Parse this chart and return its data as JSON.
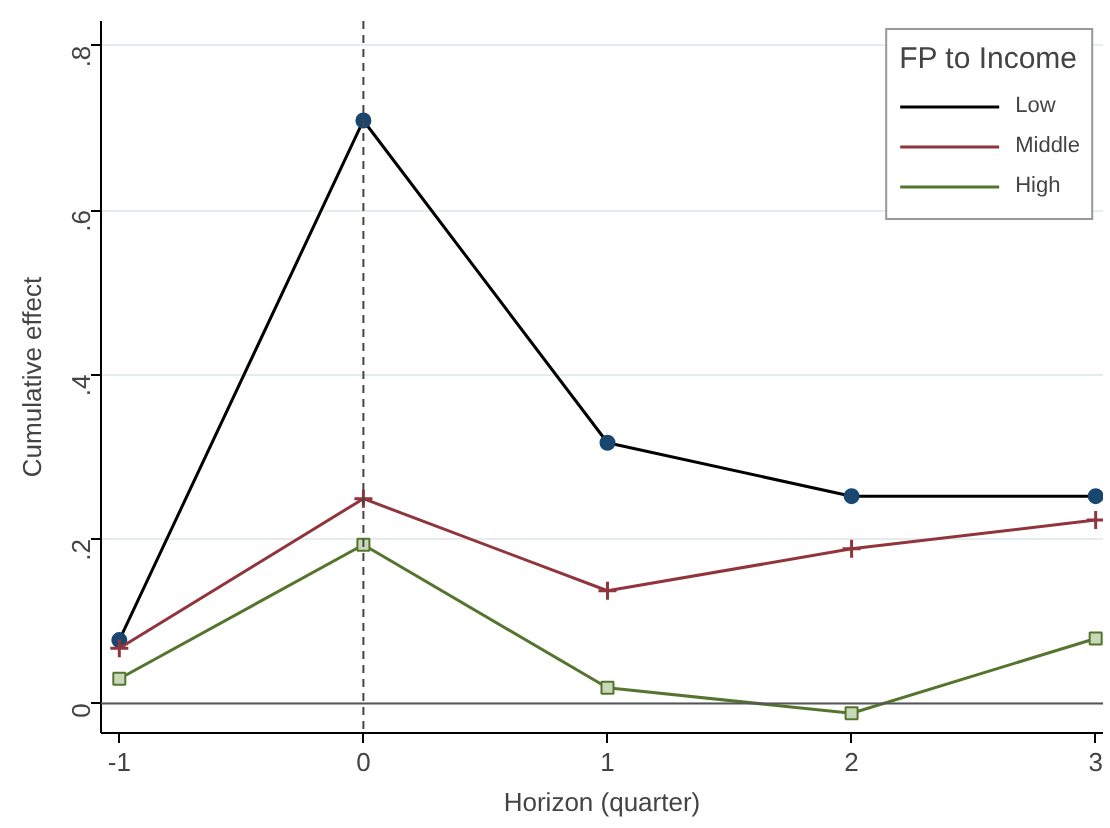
{
  "chart_data": {
    "type": "line",
    "xlabel": "Horizon (quarter)",
    "ylabel": "Cumulative effect",
    "legend_title": "FP to Income",
    "x": [
      -1,
      0,
      1,
      2,
      3
    ],
    "series": [
      {
        "name": "Low",
        "color": "#000000",
        "colors": [
          "#1a476f",
          "#1a476f",
          "#1a476f",
          "#1a476f",
          "#1a476f"
        ],
        "marker": "circle",
        "values": [
          0.077,
          0.709,
          0.317,
          0.252,
          0.252
        ]
      },
      {
        "name": "Middle",
        "color": "#90353b",
        "marker": "cross",
        "values": [
          0.067,
          0.249,
          0.137,
          0.188,
          0.223
        ]
      },
      {
        "name": "High",
        "color": "#55752f",
        "marker": "square",
        "values": [
          0.03,
          0.193,
          0.019,
          -0.012,
          0.079
        ]
      }
    ],
    "xlim": [
      -1.075,
      3.03
    ],
    "ylim": [
      -0.036,
      0.83
    ],
    "xticks": [
      -1,
      0,
      1,
      2,
      3
    ],
    "yticks": [
      {
        "value": 0,
        "label": "0"
      },
      {
        "value": 0.2,
        "label": ".2"
      },
      {
        "value": 0.4,
        "label": ".4"
      },
      {
        "value": 0.6,
        "label": ".6"
      },
      {
        "value": 0.8,
        "label": ".8"
      }
    ],
    "ref_lines": [
      {
        "axis": "y",
        "value": 0,
        "color": "#555555",
        "line_style": "solid"
      },
      {
        "axis": "x",
        "value": 0,
        "color": "#444444",
        "line_style": "dashed"
      }
    ],
    "grid": "y",
    "legend": "top right"
  }
}
